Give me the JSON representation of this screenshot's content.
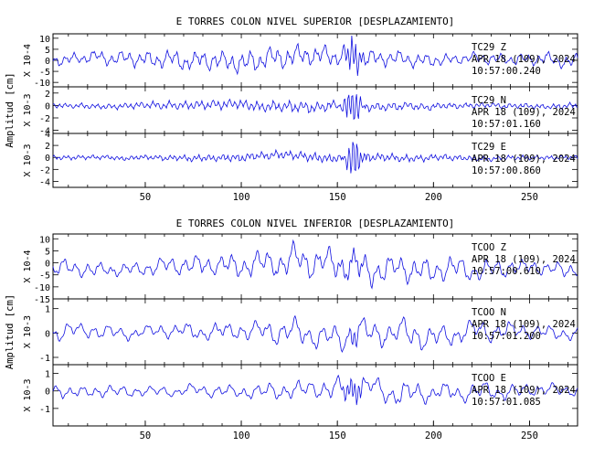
{
  "chart_data": [
    {
      "type": "line",
      "title": "E TORRES COLON NIVEL SUPERIOR [DESPLAZAMIENTO]",
      "ylabel": "Amplitud [cm]",
      "xlim": [
        2,
        275
      ],
      "x_ticks": [
        50,
        100,
        150,
        200,
        250
      ],
      "grid": false,
      "traces": [
        {
          "station": "TC29",
          "component": "Z",
          "date": "APR 18 (109), 2024",
          "time": "10:57:00.240",
          "scale_label": "X 10-4",
          "ylim": [
            -12,
            12
          ],
          "y_ticks": [
            10,
            5,
            0,
            -5,
            -10
          ],
          "baseline": 0,
          "amplitude": 4,
          "burst_amp": 9,
          "burst_center": 158,
          "freq": 1.3,
          "seed": 1
        },
        {
          "station": "TC29",
          "component": "N",
          "date": "APR 18 (109), 2024",
          "time": "10:57:01.160",
          "scale_label": "X 10-3",
          "ylim": [
            -4.5,
            3
          ],
          "y_ticks": [
            2,
            0,
            -2,
            -4
          ],
          "baseline": 0,
          "amplitude": 0.7,
          "burst_amp": 3.2,
          "burst_center": 158,
          "freq": 2.2,
          "seed": 2
        },
        {
          "station": "TC29",
          "component": "E",
          "date": "APR 18 (109), 2024",
          "time": "10:57:00.860",
          "scale_label": "X 10-3",
          "ylim": [
            -5,
            4
          ],
          "y_ticks": [
            4,
            2,
            0,
            -2,
            -4
          ],
          "baseline": 0,
          "amplitude": 0.6,
          "burst_amp": 3.5,
          "burst_center": 159,
          "freq": 2.5,
          "seed": 3
        }
      ]
    },
    {
      "type": "line",
      "title": "E TORRES COLON NIVEL INFERIOR [DESPLAZAMIENTO]",
      "ylabel": "Amplitud [cm]",
      "xlim": [
        2,
        275
      ],
      "x_ticks": [
        50,
        100,
        150,
        200,
        250
      ],
      "grid": false,
      "traces": [
        {
          "station": "TCOO",
          "component": "Z",
          "date": "APR 18 (109), 2024",
          "time": "10:57:00.610",
          "scale_label": "X 10-4",
          "ylim": [
            -15,
            12
          ],
          "y_ticks": [
            10,
            5,
            0,
            -5,
            -10,
            -15
          ],
          "baseline": -2,
          "amplitude": 5,
          "burst_amp": 4,
          "burst_center": 158,
          "freq": 1.0,
          "seed": 4
        },
        {
          "station": "TCOO",
          "component": "N",
          "date": "APR 18 (109), 2024",
          "time": "10:57:01.200",
          "scale_label": "X 10-3",
          "ylim": [
            -1.3,
            1.4
          ],
          "y_ticks": [
            1,
            0,
            -1
          ],
          "baseline": 0,
          "amplitude": 0.45,
          "burst_amp": 0.3,
          "burst_center": 158,
          "freq": 0.9,
          "seed": 5
        },
        {
          "station": "TCOO",
          "component": "E",
          "date": "APR 18 (109), 2024",
          "time": "10:57:01.085",
          "scale_label": "X 10-3",
          "ylim": [
            -2,
            1.5
          ],
          "y_ticks": [
            1,
            0,
            -1
          ],
          "baseline": 0,
          "amplitude": 0.5,
          "burst_amp": 0.9,
          "burst_center": 158,
          "freq": 0.9,
          "seed": 6
        }
      ]
    }
  ]
}
